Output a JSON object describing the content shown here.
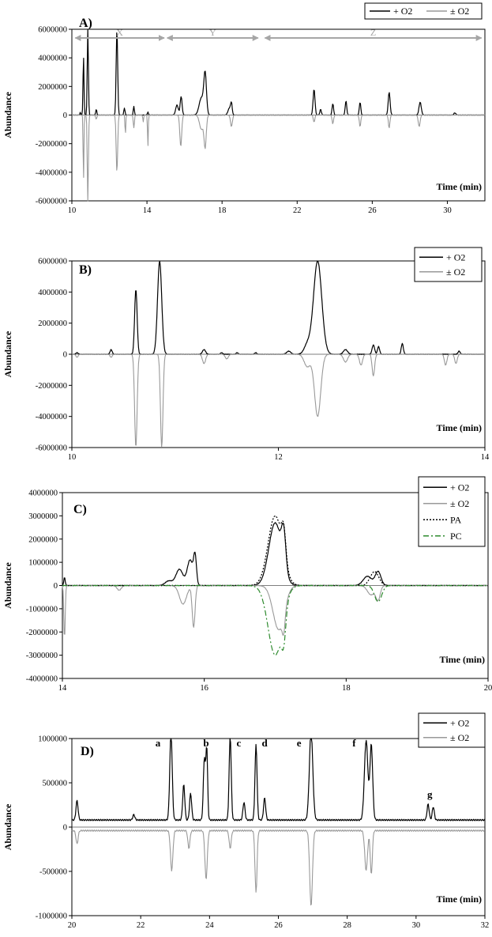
{
  "figure": {
    "colors": {
      "o2_plus": "#000000",
      "o2_pm": "#999999",
      "pa": "#000000",
      "pc": "#2e8b2e",
      "range_arrow": "#a6a6a6"
    }
  },
  "chart_data": [
    {
      "type": "line",
      "panel_label": "A)",
      "xlabel": "Time (min)",
      "ylabel": "Abundance",
      "xlim": [
        10,
        32
      ],
      "ylim": [
        -6000000,
        6000000
      ],
      "x_ticks": [
        "10",
        "14",
        "18",
        "22",
        "26",
        "30"
      ],
      "y_ticks": [
        "6000000",
        "4000000",
        "2000000",
        "0",
        "-2000000",
        "-4000000",
        "-6000000"
      ],
      "legend": [
        "+ O2",
        "± O2"
      ],
      "ranges": [
        {
          "label": "X",
          "from": 10.1,
          "to": 15.0
        },
        {
          "label": "Y",
          "from": 15.0,
          "to": 20.0
        },
        {
          "label": "Z",
          "from": 20.2,
          "to": 31.9
        }
      ],
      "series": [
        {
          "name": "+ O2",
          "color": "#000000",
          "baseline": 0,
          "peaks": [
            [
              10.45,
              200000,
              0.02
            ],
            [
              10.62,
              4200000,
              0.025
            ],
            [
              10.85,
              6000000,
              0.03
            ],
            [
              11.3,
              400000,
              0.03
            ],
            [
              12.4,
              6000000,
              0.04
            ],
            [
              12.8,
              500000,
              0.03
            ],
            [
              13.3,
              600000,
              0.03
            ],
            [
              14.05,
              200000,
              0.03
            ],
            [
              15.6,
              700000,
              0.07
            ],
            [
              15.82,
              1300000,
              0.05
            ],
            [
              16.9,
              1200000,
              0.12
            ],
            [
              17.1,
              2800000,
              0.07
            ],
            [
              18.4,
              500000,
              0.08
            ],
            [
              18.5,
              700000,
              0.04
            ],
            [
              22.9,
              1800000,
              0.05
            ],
            [
              23.25,
              400000,
              0.04
            ],
            [
              23.9,
              800000,
              0.04
            ],
            [
              24.6,
              1000000,
              0.04
            ],
            [
              25.35,
              900000,
              0.04
            ],
            [
              26.9,
              1600000,
              0.05
            ],
            [
              28.55,
              900000,
              0.06
            ],
            [
              30.4,
              150000,
              0.05
            ]
          ]
        },
        {
          "name": "± O2",
          "color": "#999999",
          "baseline": 0,
          "peaks": [
            [
              10.62,
              -4800000,
              0.02
            ],
            [
              10.85,
              -6000000,
              0.03
            ],
            [
              11.3,
              -300000,
              0.03
            ],
            [
              12.4,
              -4000000,
              0.04
            ],
            [
              12.85,
              -1400000,
              0.02
            ],
            [
              13.3,
              -900000,
              0.03
            ],
            [
              13.8,
              -500000,
              0.02
            ],
            [
              14.05,
              -2200000,
              0.02
            ],
            [
              15.8,
              -2200000,
              0.05
            ],
            [
              16.9,
              -1000000,
              0.1
            ],
            [
              17.1,
              -2200000,
              0.06
            ],
            [
              18.5,
              -800000,
              0.05
            ],
            [
              22.9,
              -500000,
              0.04
            ],
            [
              23.9,
              -600000,
              0.04
            ],
            [
              25.35,
              -800000,
              0.04
            ],
            [
              26.9,
              -900000,
              0.04
            ],
            [
              28.5,
              -800000,
              0.05
            ]
          ]
        }
      ]
    },
    {
      "type": "line",
      "panel_label": "B)",
      "xlabel": "Time (min)",
      "ylabel": "Abundance",
      "xlim": [
        10,
        14
      ],
      "ylim": [
        -6000000,
        6000000
      ],
      "x_ticks": [
        "10",
        "12",
        "14"
      ],
      "y_ticks": [
        "6000000",
        "4000000",
        "2000000",
        "0",
        "-2000000",
        "-4000000",
        "-6000000"
      ],
      "legend": [
        "+ O2",
        "± O2"
      ],
      "series": [
        {
          "name": "+ O2",
          "color": "#000000",
          "baseline": 0,
          "peaks": [
            [
              10.05,
              100000,
              0.01
            ],
            [
              10.38,
              300000,
              0.01
            ],
            [
              10.62,
              4200000,
              0.012
            ],
            [
              10.85,
              6000000,
              0.02
            ],
            [
              11.28,
              300000,
              0.015
            ],
            [
              11.45,
              100000,
              0.01
            ],
            [
              11.6,
              100000,
              0.01
            ],
            [
              11.78,
              100000,
              0.01
            ],
            [
              12.1,
              200000,
              0.02
            ],
            [
              12.28,
              600000,
              0.03
            ],
            [
              12.38,
              6000000,
              0.04
            ],
            [
              12.65,
              300000,
              0.02
            ],
            [
              12.92,
              600000,
              0.012
            ],
            [
              12.97,
              500000,
              0.01
            ],
            [
              13.2,
              700000,
              0.01
            ],
            [
              13.75,
              200000,
              0.01
            ]
          ]
        },
        {
          "name": "± O2",
          "color": "#999999",
          "baseline": 0,
          "peaks": [
            [
              10.05,
              -200000,
              0.01
            ],
            [
              10.38,
              -200000,
              0.01
            ],
            [
              10.62,
              -6000000,
              0.012
            ],
            [
              10.87,
              -6000000,
              0.012
            ],
            [
              11.28,
              -600000,
              0.015
            ],
            [
              11.5,
              -300000,
              0.015
            ],
            [
              12.28,
              -800000,
              0.03
            ],
            [
              12.38,
              -4000000,
              0.03
            ],
            [
              12.65,
              -500000,
              0.02
            ],
            [
              12.8,
              -700000,
              0.015
            ],
            [
              12.92,
              -1400000,
              0.012
            ],
            [
              13.62,
              -700000,
              0.012
            ],
            [
              13.72,
              -600000,
              0.012
            ]
          ]
        }
      ]
    },
    {
      "type": "line",
      "panel_label": "C)",
      "xlabel": "Time (min)",
      "ylabel": "Abundance",
      "xlim": [
        14,
        20
      ],
      "ylim": [
        -4000000,
        4000000
      ],
      "x_ticks": [
        "14",
        "16",
        "18",
        "20"
      ],
      "y_ticks": [
        "4000000",
        "3000000",
        "2000000",
        "1000000",
        "0",
        "-1000000",
        "-2000000",
        "-3000000",
        "-4000000"
      ],
      "legend": [
        "+ O2",
        "± O2",
        "PA",
        "PC"
      ],
      "series": [
        {
          "name": "+ O2",
          "color": "#000000",
          "style": "solid",
          "baseline": 0,
          "peaks": [
            [
              14.03,
              350000,
              0.01
            ],
            [
              15.5,
              200000,
              0.05
            ],
            [
              15.65,
              700000,
              0.05
            ],
            [
              15.8,
              1100000,
              0.04
            ],
            [
              15.87,
              1200000,
              0.02
            ],
            [
              17.0,
              2700000,
              0.09
            ],
            [
              17.12,
              1500000,
              0.03
            ],
            [
              18.3,
              400000,
              0.06
            ],
            [
              18.45,
              600000,
              0.04
            ]
          ]
        },
        {
          "name": "± O2",
          "color": "#999999",
          "style": "solid",
          "baseline": 0,
          "peaks": [
            [
              14.03,
              -2300000,
              0.01
            ],
            [
              14.8,
              -200000,
              0.03
            ],
            [
              15.7,
              -800000,
              0.05
            ],
            [
              15.85,
              -1800000,
              0.02
            ],
            [
              17.05,
              -1900000,
              0.08
            ],
            [
              17.12,
              -800000,
              0.02
            ],
            [
              18.35,
              -400000,
              0.05
            ],
            [
              18.45,
              -600000,
              0.03
            ]
          ]
        },
        {
          "name": "PA",
          "color": "#000000",
          "style": "dotted",
          "baseline": 0,
          "peaks": [
            [
              17.0,
              3000000,
              0.1
            ],
            [
              17.12,
              1200000,
              0.03
            ],
            [
              18.4,
              600000,
              0.06
            ]
          ]
        },
        {
          "name": "PC",
          "color": "#2e8b2e",
          "style": "dashdot",
          "baseline": 0,
          "peaks": [
            [
              17.0,
              -3000000,
              0.1
            ],
            [
              17.12,
              -1200000,
              0.03
            ],
            [
              18.45,
              -700000,
              0.05
            ]
          ]
        }
      ]
    },
    {
      "type": "line",
      "panel_label": "D)",
      "xlabel": "Time (min)",
      "ylabel": "Abundance",
      "xlim": [
        20,
        32
      ],
      "ylim": [
        -1000000,
        1000000
      ],
      "x_ticks": [
        "20",
        "22",
        "24",
        "26",
        "28",
        "30",
        "32"
      ],
      "y_ticks": [
        "1000000",
        "500000",
        "0",
        "-500000",
        "-1000000"
      ],
      "legend": [
        "+ O2",
        "± O2"
      ],
      "peak_labels": [
        {
          "label": "a",
          "x": 22.5
        },
        {
          "label": "b",
          "x": 23.9
        },
        {
          "label": "c",
          "x": 24.85
        },
        {
          "label": "d",
          "x": 25.6
        },
        {
          "label": "e",
          "x": 26.6
        },
        {
          "label": "f",
          "x": 28.2
        },
        {
          "label": "g",
          "x": 30.4
        }
      ],
      "series": [
        {
          "name": "+ O2",
          "color": "#000000",
          "baseline": 80000,
          "peaks": [
            [
              20.15,
              220000,
              0.03
            ],
            [
              21.8,
              60000,
              0.03
            ],
            [
              22.88,
              1000000,
              0.035
            ],
            [
              23.25,
              400000,
              0.03
            ],
            [
              23.45,
              300000,
              0.03
            ],
            [
              23.85,
              700000,
              0.03
            ],
            [
              23.92,
              800000,
              0.025
            ],
            [
              24.6,
              950000,
              0.03
            ],
            [
              25.0,
              200000,
              0.03
            ],
            [
              25.35,
              850000,
              0.03
            ],
            [
              25.6,
              250000,
              0.03
            ],
            [
              26.95,
              1000000,
              0.05
            ],
            [
              28.55,
              900000,
              0.05
            ],
            [
              28.7,
              850000,
              0.04
            ],
            [
              30.35,
              180000,
              0.03
            ],
            [
              30.5,
              150000,
              0.03
            ]
          ]
        },
        {
          "name": "± O2",
          "color": "#999999",
          "baseline": -40000,
          "peaks": [
            [
              20.15,
              -150000,
              0.03
            ],
            [
              22.9,
              -450000,
              0.035
            ],
            [
              23.4,
              -200000,
              0.03
            ],
            [
              23.9,
              -550000,
              0.035
            ],
            [
              24.6,
              -200000,
              0.03
            ],
            [
              25.35,
              -700000,
              0.03
            ],
            [
              26.95,
              -850000,
              0.04
            ],
            [
              28.55,
              -450000,
              0.04
            ],
            [
              28.7,
              -500000,
              0.03
            ]
          ]
        }
      ]
    }
  ]
}
